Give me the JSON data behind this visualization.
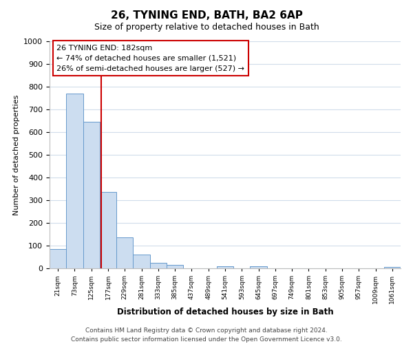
{
  "title": "26, TYNING END, BATH, BA2 6AP",
  "subtitle": "Size of property relative to detached houses in Bath",
  "xlabel": "Distribution of detached houses by size in Bath",
  "ylabel": "Number of detached properties",
  "bar_labels": [
    "21sqm",
    "73sqm",
    "125sqm",
    "177sqm",
    "229sqm",
    "281sqm",
    "333sqm",
    "385sqm",
    "437sqm",
    "489sqm",
    "541sqm",
    "593sqm",
    "645sqm",
    "697sqm",
    "749sqm",
    "801sqm",
    "853sqm",
    "905sqm",
    "957sqm",
    "1009sqm",
    "1061sqm"
  ],
  "bar_values": [
    85,
    770,
    645,
    335,
    135,
    60,
    25,
    15,
    0,
    0,
    10,
    0,
    10,
    0,
    0,
    0,
    0,
    0,
    0,
    0,
    5
  ],
  "bar_color": "#ccddf0",
  "bar_edge_color": "#6699cc",
  "vline_color": "#cc0000",
  "box_edge_color": "#cc0000",
  "annotation_line1": "26 TYNING END: 182sqm",
  "annotation_line2": "← 74% of detached houses are smaller (1,521)",
  "annotation_line3": "26% of semi-detached houses are larger (527) →",
  "ylim": [
    0,
    1000
  ],
  "yticks": [
    0,
    100,
    200,
    300,
    400,
    500,
    600,
    700,
    800,
    900,
    1000
  ],
  "footer_line1": "Contains HM Land Registry data © Crown copyright and database right 2024.",
  "footer_line2": "Contains public sector information licensed under the Open Government Licence v3.0.",
  "bg_color": "#ffffff",
  "grid_color": "#d0dcea"
}
